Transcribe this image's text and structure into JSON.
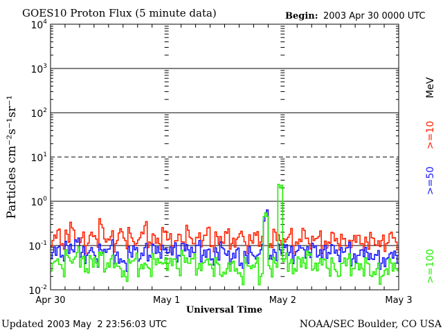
{
  "chart_data": {
    "type": "line",
    "title": "GOES10 Proton Flux (5 minute data)",
    "begin_label": "Begin:",
    "begin_value": "2003 Apr 30 0000 UTC",
    "xlabel": "Universal Time",
    "ylabel": "Particles cm⁻²s⁻¹sr⁻¹",
    "yscale": "log",
    "ylim": [
      0.01,
      10000
    ],
    "yticks": [
      {
        "base": "10",
        "exp": "4",
        "v": 10000
      },
      {
        "base": "10",
        "exp": "3",
        "v": 1000
      },
      {
        "base": "10",
        "exp": "2",
        "v": 100
      },
      {
        "base": "10",
        "exp": "1",
        "v": 10
      },
      {
        "base": "10",
        "exp": "0",
        "v": 1
      },
      {
        "base": "10",
        "exp": "-1",
        "v": 0.1
      },
      {
        "base": "10",
        "exp": "-2",
        "v": 0.01
      }
    ],
    "xticks": [
      "Apr 30",
      "May 1",
      "May 2",
      "May 3"
    ],
    "x_unit": "hours since begin",
    "xlim": [
      0,
      72
    ],
    "legend_unit": "MeV",
    "series": [
      {
        "name": ">=10",
        "color": "#ff2200",
        "values": [
          0.13,
          0.22,
          0.11,
          0.18,
          0.25,
          0.12,
          0.15,
          0.1,
          0.2,
          0.14,
          0.3,
          0.12,
          0.16,
          0.11,
          0.24,
          0.13,
          0.19,
          0.1,
          0.15,
          0.28,
          0.12,
          0.17,
          0.11,
          0.2,
          0.14,
          0.1,
          0.18,
          0.12,
          0.22,
          0.11,
          0.15,
          0.13,
          0.25,
          0.1,
          0.16,
          0.12,
          0.19,
          0.11,
          0.14,
          0.21,
          0.1,
          0.13,
          0.17,
          0.12,
          0.55,
          0.11,
          0.2,
          0.13,
          0.12,
          0.18,
          0.1,
          0.14,
          0.22,
          0.11,
          0.13,
          0.16,
          0.1,
          0.12,
          0.19,
          0.11,
          0.14,
          0.1,
          0.13,
          0.17,
          0.11,
          0.12,
          0.15,
          0.1,
          0.13,
          0.11,
          0.2,
          0.12
        ]
      },
      {
        "name": ">=50",
        "color": "#1a1aff",
        "values": [
          0.07,
          0.09,
          0.06,
          0.1,
          0.08,
          0.12,
          0.07,
          0.06,
          0.09,
          0.05,
          0.08,
          0.07,
          0.1,
          0.06,
          0.05,
          0.04,
          0.07,
          0.08,
          0.05,
          0.09,
          0.06,
          0.1,
          0.07,
          0.08,
          0.07,
          0.09,
          0.06,
          0.11,
          0.08,
          0.07,
          0.1,
          0.06,
          0.08,
          0.05,
          0.07,
          0.09,
          0.06,
          0.05,
          0.08,
          0.04,
          0.06,
          0.07,
          0.05,
          0.08,
          0.55,
          0.06,
          0.07,
          0.08,
          0.09,
          0.07,
          0.06,
          0.1,
          0.08,
          0.07,
          0.09,
          0.06,
          0.08,
          0.07,
          0.1,
          0.06,
          0.07,
          0.09,
          0.05,
          0.06,
          0.08,
          0.07,
          0.05,
          0.06,
          0.04,
          0.05,
          0.07,
          0.06
        ]
      },
      {
        "name": ">=100",
        "color": "#22ee00",
        "values": [
          0.04,
          0.05,
          0.03,
          0.06,
          0.04,
          0.07,
          0.05,
          0.03,
          0.05,
          0.04,
          0.06,
          0.03,
          0.05,
          0.04,
          0.03,
          0.02,
          0.04,
          0.05,
          0.03,
          0.04,
          0.03,
          0.05,
          0.04,
          0.04,
          0.04,
          0.05,
          0.03,
          0.06,
          0.04,
          0.05,
          0.03,
          0.04,
          0.05,
          0.03,
          0.04,
          0.02,
          0.03,
          0.04,
          0.03,
          0.02,
          0.04,
          0.03,
          0.04,
          0.02,
          0.55,
          0.03,
          0.04,
          2.0,
          0.05,
          0.04,
          0.03,
          0.05,
          0.04,
          0.06,
          0.03,
          0.04,
          0.05,
          0.03,
          0.04,
          0.02,
          0.04,
          0.05,
          0.03,
          0.04,
          0.03,
          0.04,
          0.02,
          0.03,
          0.02,
          0.03,
          0.04,
          0.03
        ]
      }
    ]
  },
  "footer": {
    "updated_label": "Updated",
    "updated_value": "2003 May  2 23:56:03 UTC",
    "credit": "NOAA/SEC Boulder, CO USA"
  }
}
